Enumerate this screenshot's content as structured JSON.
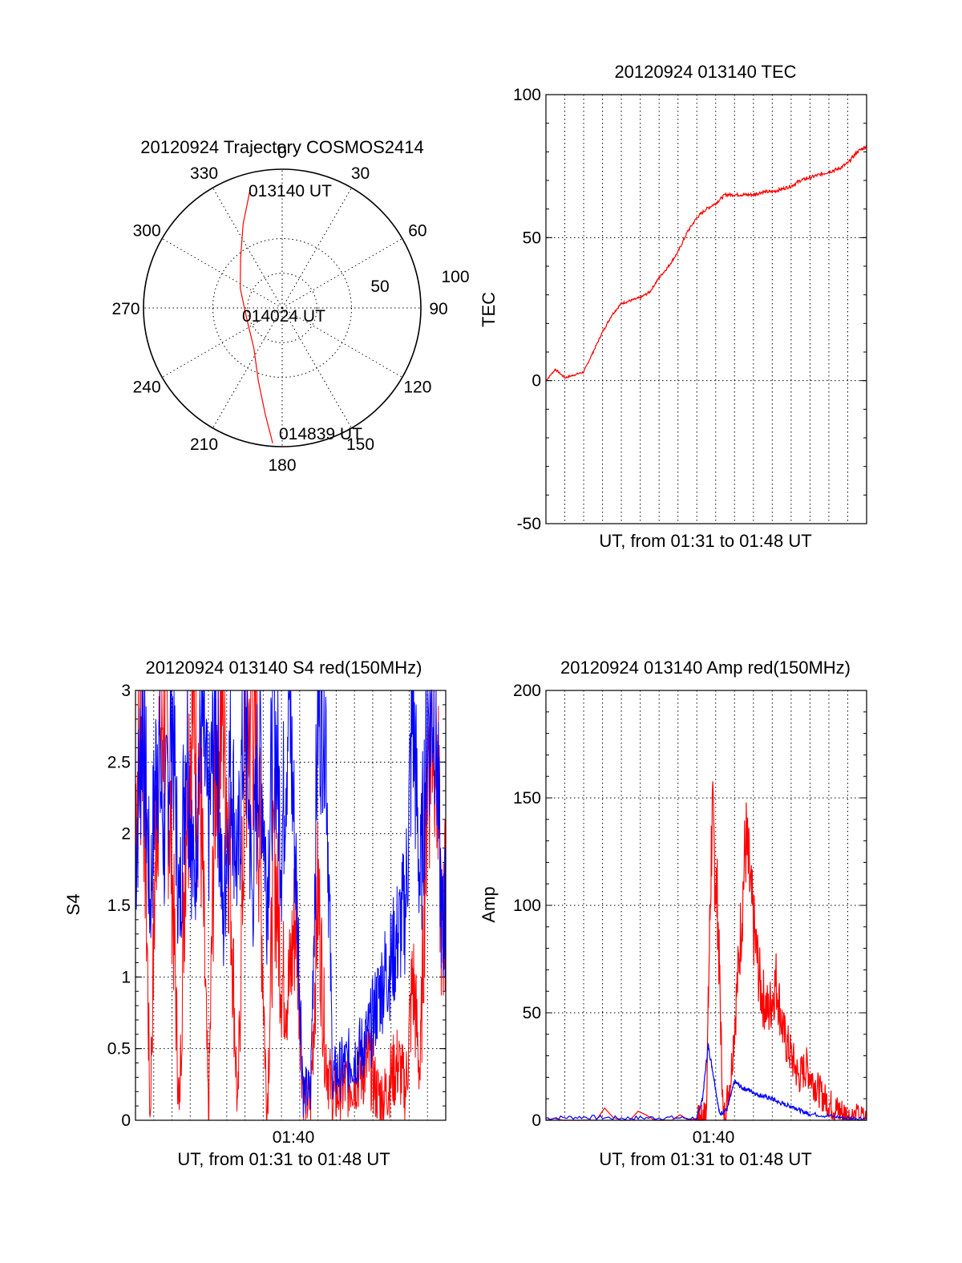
{
  "colors": {
    "red": "#ff0000",
    "blue": "#0000ff",
    "axis": "#000000"
  },
  "chart_data": [
    {
      "type": "polar",
      "title": "20120924 Trajectory COSMOS2414",
      "azimuth_labels": [
        "0",
        "30",
        "60",
        "90",
        "120",
        "150",
        "180",
        "210",
        "240",
        "270",
        "300",
        "330"
      ],
      "radial_ticks": [
        50,
        100
      ],
      "radial_tick_labels": [
        "50",
        "100"
      ],
      "annotations": [
        "013140 UT",
        "014024 UT",
        "014839 UT"
      ],
      "trajectory": {
        "name": "",
        "points": [
          {
            "az": 345,
            "zenith": 80
          },
          {
            "az": 335,
            "zenith": 60
          },
          {
            "az": 320,
            "zenith": 42
          },
          {
            "az": 295,
            "zenith": 30
          },
          {
            "az": 255,
            "zenith": 24
          },
          {
            "az": 215,
            "zenith": 32
          },
          {
            "az": 198,
            "zenith": 50
          },
          {
            "az": 189,
            "zenith": 70
          },
          {
            "az": 184,
            "zenith": 88
          }
        ]
      }
    },
    {
      "type": "line",
      "title": "20120924 013140 TEC",
      "ylabel": "TEC",
      "xlabel": "UT, from 01:31 to 01:48 UT",
      "ylim": [
        -50,
        100
      ],
      "yticks": [
        "-50",
        "0",
        "50",
        "100"
      ],
      "xlim_minutes": [
        1.0,
        18.0
      ],
      "series": [
        {
          "name": "",
          "color": "red",
          "x": [
            1.0,
            1.5,
            2.0,
            2.5,
            3.0,
            3.5,
            4.0,
            4.5,
            5.0,
            5.5,
            6.0,
            6.5,
            7.0,
            7.5,
            8.0,
            8.5,
            9.0,
            9.5,
            10.0,
            10.5,
            11.0,
            11.5,
            12.0,
            12.5,
            13.0,
            13.5,
            14.0,
            14.5,
            15.0,
            15.5,
            16.0,
            16.5,
            17.0,
            17.5,
            18.0
          ],
          "y": [
            0,
            4,
            1,
            2,
            3,
            10,
            17,
            23,
            27,
            28,
            29,
            31,
            36,
            40,
            45,
            52,
            57,
            60,
            62,
            65,
            65,
            65,
            65,
            66,
            66,
            67,
            68,
            70,
            71,
            72,
            73,
            74,
            76,
            80,
            82
          ]
        }
      ]
    },
    {
      "type": "line",
      "title": "20120924 013140 S4 red(150MHz)",
      "ylabel": "S4",
      "xlabel": "UT, from 01:31 to 01:48 UT",
      "ylim": [
        0,
        3
      ],
      "yticks": [
        "0",
        "0.5",
        "1",
        "1.5",
        "2",
        "2.5",
        "3"
      ],
      "xtick_labels": [
        "01:40"
      ],
      "xlim_minutes": [
        1.0,
        18.0
      ],
      "series": [
        {
          "name": "",
          "color": "blue",
          "x": [
            1.0,
            1.4,
            1.8,
            2.2,
            2.6,
            3.0,
            3.4,
            3.8,
            4.2,
            4.6,
            5.0,
            5.4,
            5.8,
            6.2,
            6.6,
            7.0,
            7.4,
            7.8,
            8.2,
            8.6,
            9.0,
            9.4,
            9.8,
            10.2,
            10.6,
            11.0,
            11.4,
            11.8,
            12.2,
            12.6,
            13.0,
            13.4,
            13.8,
            14.2,
            14.6,
            15.0,
            15.4,
            15.8,
            16.2,
            16.6,
            17.0,
            17.4,
            17.8,
            18.0
          ],
          "y": [
            1.8,
            2.9,
            1.5,
            2.7,
            1.9,
            3.0,
            1.4,
            2.8,
            1.6,
            2.9,
            2.0,
            3.0,
            1.3,
            2.6,
            1.7,
            3.0,
            1.5,
            2.8,
            1.6,
            2.9,
            1.9,
            3.0,
            1.7,
            0.2,
            0.2,
            2.9,
            3.0,
            0.3,
            0.35,
            0.4,
            0.45,
            0.5,
            0.6,
            0.8,
            1.0,
            1.1,
            1.3,
            1.5,
            2.9,
            1.6,
            2.8,
            3.0,
            1.3,
            1.5
          ]
        },
        {
          "name": "",
          "color": "red",
          "x": [
            1.0,
            1.4,
            1.8,
            2.2,
            2.6,
            3.0,
            3.4,
            3.8,
            4.2,
            4.6,
            5.0,
            5.4,
            5.8,
            6.2,
            6.6,
            7.0,
            7.4,
            7.8,
            8.2,
            8.6,
            9.0,
            9.4,
            9.8,
            10.2,
            10.6,
            11.0,
            11.4,
            11.8,
            12.2,
            12.6,
            13.0,
            13.4,
            13.8,
            14.2,
            14.6,
            15.0,
            15.4,
            15.8,
            16.2,
            16.6,
            17.0,
            17.4,
            17.8,
            18.0
          ],
          "y": [
            2.2,
            3.0,
            0.0,
            2.5,
            3.0,
            1.8,
            0.0,
            2.4,
            3.0,
            2.1,
            0.0,
            2.6,
            3.0,
            1.7,
            0.0,
            2.5,
            3.0,
            2.0,
            0.0,
            1.9,
            1.0,
            0.9,
            1.5,
            0.15,
            0.12,
            1.6,
            0.5,
            0.15,
            0.2,
            0.25,
            0.3,
            0.35,
            0.4,
            0.2,
            0.15,
            0.3,
            0.4,
            0.2,
            1.0,
            0.3,
            2.5,
            3.0,
            1.2,
            1.6
          ]
        }
      ]
    },
    {
      "type": "line",
      "title": "20120924 013140 Amp red(150MHz)",
      "ylabel": "Amp",
      "xlabel": "UT, from 01:31 to 01:48 UT",
      "ylim": [
        0,
        200
      ],
      "yticks": [
        "0",
        "50",
        "100",
        "150",
        "200"
      ],
      "xtick_labels": [
        "01:40"
      ],
      "xlim_minutes": [
        1.0,
        18.0
      ],
      "series": [
        {
          "name": "",
          "color": "red",
          "x": [
            1.0,
            9.0,
            9.3,
            9.5,
            9.8,
            10.1,
            10.4,
            10.8,
            11.2,
            11.6,
            12.0,
            12.4,
            12.8,
            13.2,
            13.6,
            14.0,
            14.4,
            14.8,
            15.2,
            15.6,
            16.0,
            16.4,
            16.8,
            17.2,
            18.0
          ],
          "y": [
            0,
            0,
            0,
            5,
            140,
            100,
            0,
            20,
            70,
            130,
            90,
            60,
            50,
            65,
            40,
            30,
            20,
            25,
            18,
            12,
            8,
            5,
            3,
            1,
            0
          ]
        },
        {
          "name": "",
          "color": "blue",
          "x": [
            1.0,
            3.0,
            5.0,
            7.0,
            9.0,
            9.3,
            9.6,
            9.9,
            10.2,
            10.6,
            11.0,
            11.4,
            11.8,
            12.2,
            12.6,
            13.0,
            13.4,
            13.8,
            14.2,
            14.6,
            15.0,
            16.0,
            17.0,
            18.0
          ],
          "y": [
            1,
            1.5,
            1,
            1.2,
            1,
            10,
            35,
            20,
            3,
            5,
            18,
            15,
            14,
            12,
            11,
            10,
            8,
            7,
            6,
            4,
            3,
            2,
            1,
            1
          ]
        }
      ]
    }
  ]
}
